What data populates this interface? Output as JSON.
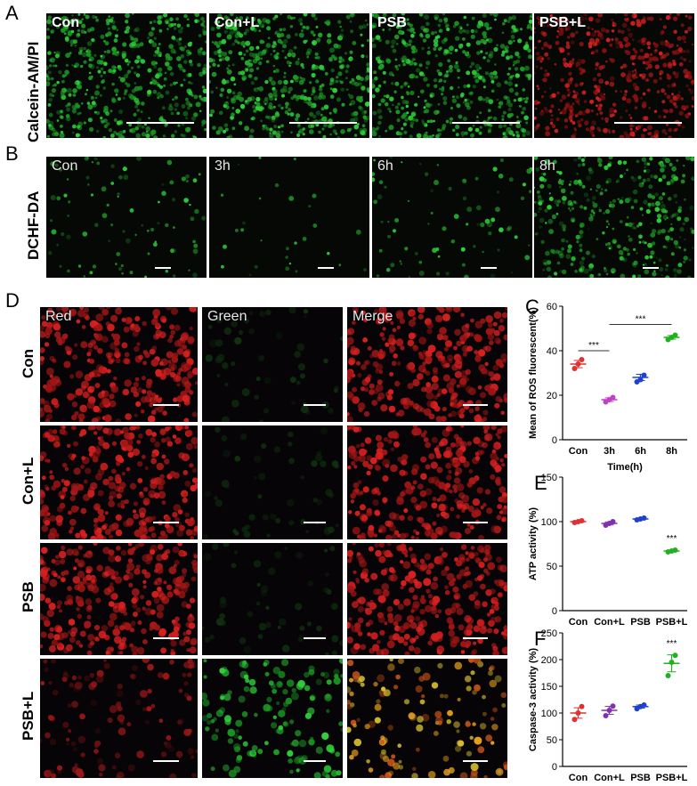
{
  "panels": {
    "A": {
      "letter": "A",
      "row_label": "Calcein-AM/PI",
      "tiles": [
        {
          "label": "Con"
        },
        {
          "label": "Con+L"
        },
        {
          "label": "PSB"
        },
        {
          "label": "PSB+L"
        }
      ]
    },
    "B": {
      "letter": "B",
      "row_label": "DCHF-DA",
      "tiles": [
        {
          "label": "Con"
        },
        {
          "label": "3h"
        },
        {
          "label": "6h"
        },
        {
          "label": "8h"
        }
      ]
    },
    "D": {
      "letter": "D",
      "col_labels": [
        "Red",
        "Green",
        "Merge"
      ],
      "row_labels": [
        "Con",
        "Con+L",
        "PSB",
        "PSB+L"
      ]
    }
  },
  "colors": {
    "green_stain": "#2fd13a",
    "red_stain": "#d82020",
    "merge_orange": "#e8a020"
  },
  "chart_data": [
    {
      "id": "C",
      "letter": "C",
      "type": "scatter",
      "categories": [
        "Con",
        "3h",
        "6h",
        "8h"
      ],
      "values": [
        34,
        18,
        28,
        46
      ],
      "points": [
        [
          32,
          34,
          36
        ],
        [
          17,
          18,
          19
        ],
        [
          26,
          27,
          29
        ],
        [
          45,
          46,
          47
        ]
      ],
      "colors": [
        "#e03030",
        "#c040c8",
        "#2040d0",
        "#20b020"
      ],
      "xlabel": "Time(h)",
      "ylabel": "Mean of ROS fluorescent(%)",
      "ylim": [
        0,
        60
      ],
      "yticks": [
        0,
        20,
        40,
        60
      ],
      "significance": [
        {
          "label": "***",
          "from": 0,
          "to": 1
        },
        {
          "label": "***",
          "from": 1,
          "to": 3
        }
      ]
    },
    {
      "id": "E",
      "letter": "E",
      "type": "scatter",
      "categories": [
        "Con",
        "Con+L",
        "PSB",
        "PSB+L"
      ],
      "values": [
        100,
        98,
        103,
        67
      ],
      "points": [
        [
          99,
          100,
          101
        ],
        [
          96,
          98,
          100
        ],
        [
          102,
          103,
          104
        ],
        [
          66,
          67,
          68
        ]
      ],
      "colors": [
        "#e03030",
        "#8030b0",
        "#2040d0",
        "#20b020"
      ],
      "xlabel": "",
      "ylabel": "ATP activity (%)",
      "ylim": [
        0,
        150
      ],
      "yticks": [
        0,
        50,
        100,
        150
      ],
      "significance": [
        {
          "label": "***",
          "at": 3
        }
      ]
    },
    {
      "id": "F",
      "letter": "F",
      "type": "scatter",
      "categories": [
        "Con",
        "Con+L",
        "PSB",
        "PSB+L"
      ],
      "values": [
        100,
        105,
        112,
        193
      ],
      "points": [
        [
          88,
          100,
          112
        ],
        [
          95,
          105,
          113
        ],
        [
          108,
          112,
          115
        ],
        [
          170,
          195,
          208
        ]
      ],
      "colors": [
        "#e03030",
        "#8030b0",
        "#2040d0",
        "#20b020"
      ],
      "xlabel": "",
      "ylabel": "Caspase-3 activity (%)",
      "ylim": [
        0,
        250
      ],
      "yticks": [
        0,
        50,
        100,
        150,
        200,
        250
      ],
      "significance": [
        {
          "label": "***",
          "at": 3
        }
      ]
    }
  ]
}
